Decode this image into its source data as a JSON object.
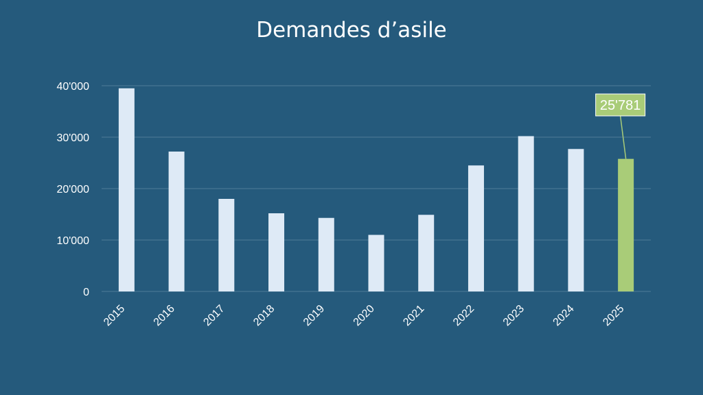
{
  "colors": {
    "background": "#255a7c",
    "bar": "#deeaf6",
    "highlight_bar": "#a9cc78",
    "gridline": "#4f7c99",
    "text": "#ffffff"
  },
  "chart_data": {
    "type": "bar",
    "title": "Demandes d’asile",
    "xlabel": "",
    "ylabel": "",
    "ylim": [
      0,
      40000
    ],
    "yticks": [
      0,
      10000,
      20000,
      30000,
      40000
    ],
    "ytick_labels": [
      "0",
      "10'000",
      "20'000",
      "30'000",
      "40'000"
    ],
    "categories": [
      "2015",
      "2016",
      "2017",
      "2018",
      "2019",
      "2020",
      "2021",
      "2022",
      "2023",
      "2024",
      "2025"
    ],
    "values": [
      39500,
      27200,
      18000,
      15200,
      14300,
      11000,
      14900,
      24500,
      30200,
      27700,
      25781
    ],
    "highlight_index": 10,
    "annotation": {
      "text": "25'781",
      "target": "2025"
    },
    "grid": true,
    "legend": "none"
  }
}
